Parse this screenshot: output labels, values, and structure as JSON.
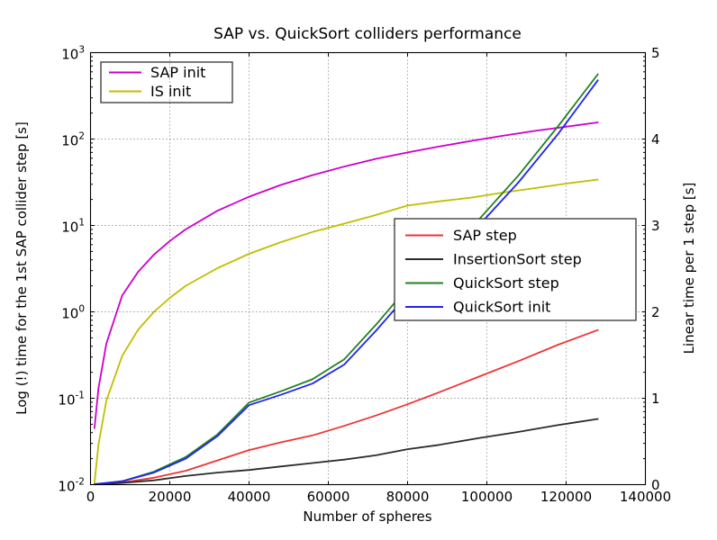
{
  "chart_data": {
    "type": "line",
    "title": "SAP vs. QuickSort colliders performance",
    "xlabel": "Number of spheres",
    "ylabel_left": "Log (!) time for the 1st SAP collider step [s]",
    "ylabel_right": "Linear time per 1 step [s]",
    "grid": true,
    "x_axis": {
      "range": [
        0,
        140000
      ],
      "ticks": [
        0,
        20000,
        40000,
        60000,
        80000,
        100000,
        120000,
        140000
      ]
    },
    "left_axis": {
      "scale": "log",
      "range": [
        0.01,
        1000
      ],
      "decade_exponents": [
        -2,
        -1,
        0,
        1,
        2,
        3
      ]
    },
    "right_axis": {
      "scale": "linear",
      "range": [
        0,
        5
      ],
      "ticks": [
        0,
        1,
        2,
        3,
        4,
        5
      ]
    },
    "series": [
      {
        "name": "SAP init",
        "color": "#CC00CC",
        "axis": "left",
        "x": [
          1000,
          2000,
          4000,
          8000,
          12000,
          16000,
          20000,
          24000,
          32000,
          40000,
          48000,
          56000,
          64000,
          72000,
          80000,
          88000,
          96000,
          104000,
          112000,
          120000,
          128000
        ],
        "y": [
          0.045,
          0.13,
          0.43,
          1.55,
          2.9,
          4.6,
          6.6,
          9.0,
          14.8,
          21.5,
          29.4,
          38.2,
          48,
          59,
          70,
          82,
          95,
          109,
          124,
          139,
          156
        ]
      },
      {
        "name": "IS init",
        "color": "#BFBF00",
        "axis": "left",
        "x": [
          1000,
          2000,
          4000,
          8000,
          12000,
          16000,
          20000,
          24000,
          32000,
          40000,
          48000,
          56000,
          64000,
          72000,
          80000,
          88000,
          96000,
          104000,
          112000,
          120000,
          128000
        ],
        "y": [
          0.0105,
          0.029,
          0.094,
          0.31,
          0.62,
          1.0,
          1.45,
          2.0,
          3.2,
          4.7,
          6.4,
          8.4,
          10.5,
          13.2,
          17.0,
          19.0,
          21.0,
          24.0,
          27.0,
          30.5,
          34.0
        ]
      },
      {
        "name": "SAP step",
        "color": "#EE3333",
        "axis": "right",
        "x": [
          1000,
          8000,
          16000,
          24000,
          32000,
          40000,
          48000,
          56000,
          64000,
          72000,
          80000,
          88000,
          98000,
          108000,
          118000,
          128000
        ],
        "y": [
          0.005,
          0.025,
          0.08,
          0.16,
          0.28,
          0.4,
          0.49,
          0.57,
          0.68,
          0.8,
          0.93,
          1.07,
          1.25,
          1.43,
          1.62,
          1.79
        ]
      },
      {
        "name": "InsertionSort step",
        "color": "#2B2B2B",
        "axis": "right",
        "x": [
          1000,
          8000,
          16000,
          24000,
          32000,
          40000,
          48000,
          56000,
          64000,
          72000,
          80000,
          88000,
          98000,
          108000,
          118000,
          128000
        ],
        "y": [
          0.003,
          0.02,
          0.05,
          0.1,
          0.14,
          0.17,
          0.21,
          0.25,
          0.29,
          0.34,
          0.41,
          0.46,
          0.54,
          0.61,
          0.69,
          0.76
        ]
      },
      {
        "name": "QuickSort step",
        "color": "#208020",
        "axis": "right",
        "x": [
          1000,
          8000,
          16000,
          24000,
          32000,
          40000,
          48000,
          56000,
          64000,
          72000,
          80000,
          88000,
          98000,
          108000,
          118000,
          128000
        ],
        "y": [
          0.005,
          0.04,
          0.15,
          0.32,
          0.58,
          0.95,
          1.08,
          1.22,
          1.45,
          1.85,
          2.28,
          2.65,
          3.07,
          3.58,
          4.15,
          4.75
        ]
      },
      {
        "name": "QuickSort init",
        "color": "#2222F0",
        "axis": "right",
        "x": [
          1000,
          8000,
          16000,
          24000,
          32000,
          40000,
          48000,
          56000,
          64000,
          72000,
          80000,
          88000,
          98000,
          108000,
          118000,
          128000
        ],
        "y": [
          0.005,
          0.04,
          0.14,
          0.3,
          0.56,
          0.92,
          1.04,
          1.17,
          1.39,
          1.78,
          2.2,
          2.57,
          3.0,
          3.5,
          4.06,
          4.68
        ]
      }
    ],
    "legends": [
      {
        "position": "upper-left",
        "opaque": false,
        "series": [
          "SAP init",
          "IS init"
        ]
      },
      {
        "position": "center-right",
        "opaque": true,
        "series": [
          "SAP step",
          "InsertionSort step",
          "QuickSort step",
          "QuickSort init"
        ]
      }
    ]
  }
}
